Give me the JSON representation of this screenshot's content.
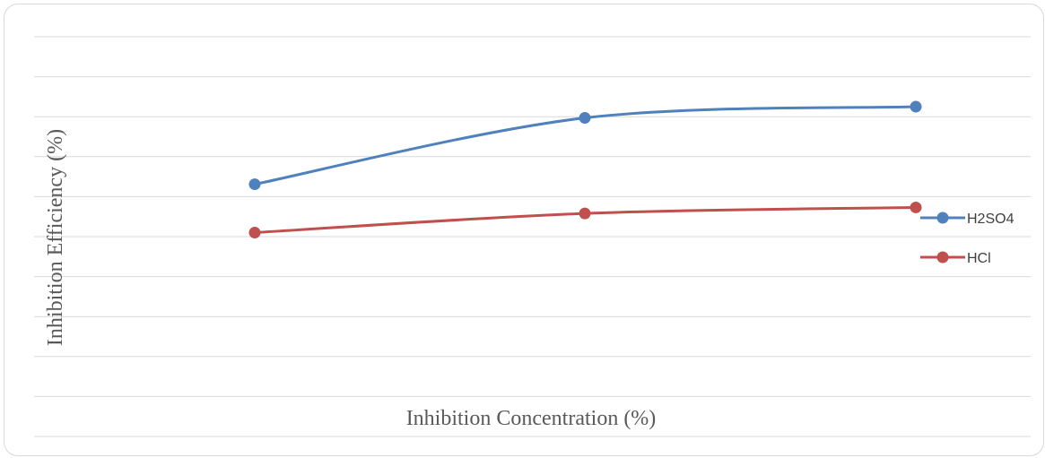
{
  "chart_data": {
    "type": "line",
    "title": "",
    "xlabel": "Inhibition Concentration (%)",
    "ylabel": "Inhibition Efficiency (%)",
    "x_points": 3,
    "ylim": [
      0,
      100
    ],
    "gridlines": true,
    "grid_step": 10,
    "legend_position": "right",
    "series": [
      {
        "name": "H2SO4",
        "color": "#4f81bd",
        "values": [
          63.1,
          79.7,
          82.5
        ]
      },
      {
        "name": "HCl",
        "color": "#c0504d",
        "values": [
          51.0,
          55.8,
          57.3
        ]
      }
    ]
  }
}
